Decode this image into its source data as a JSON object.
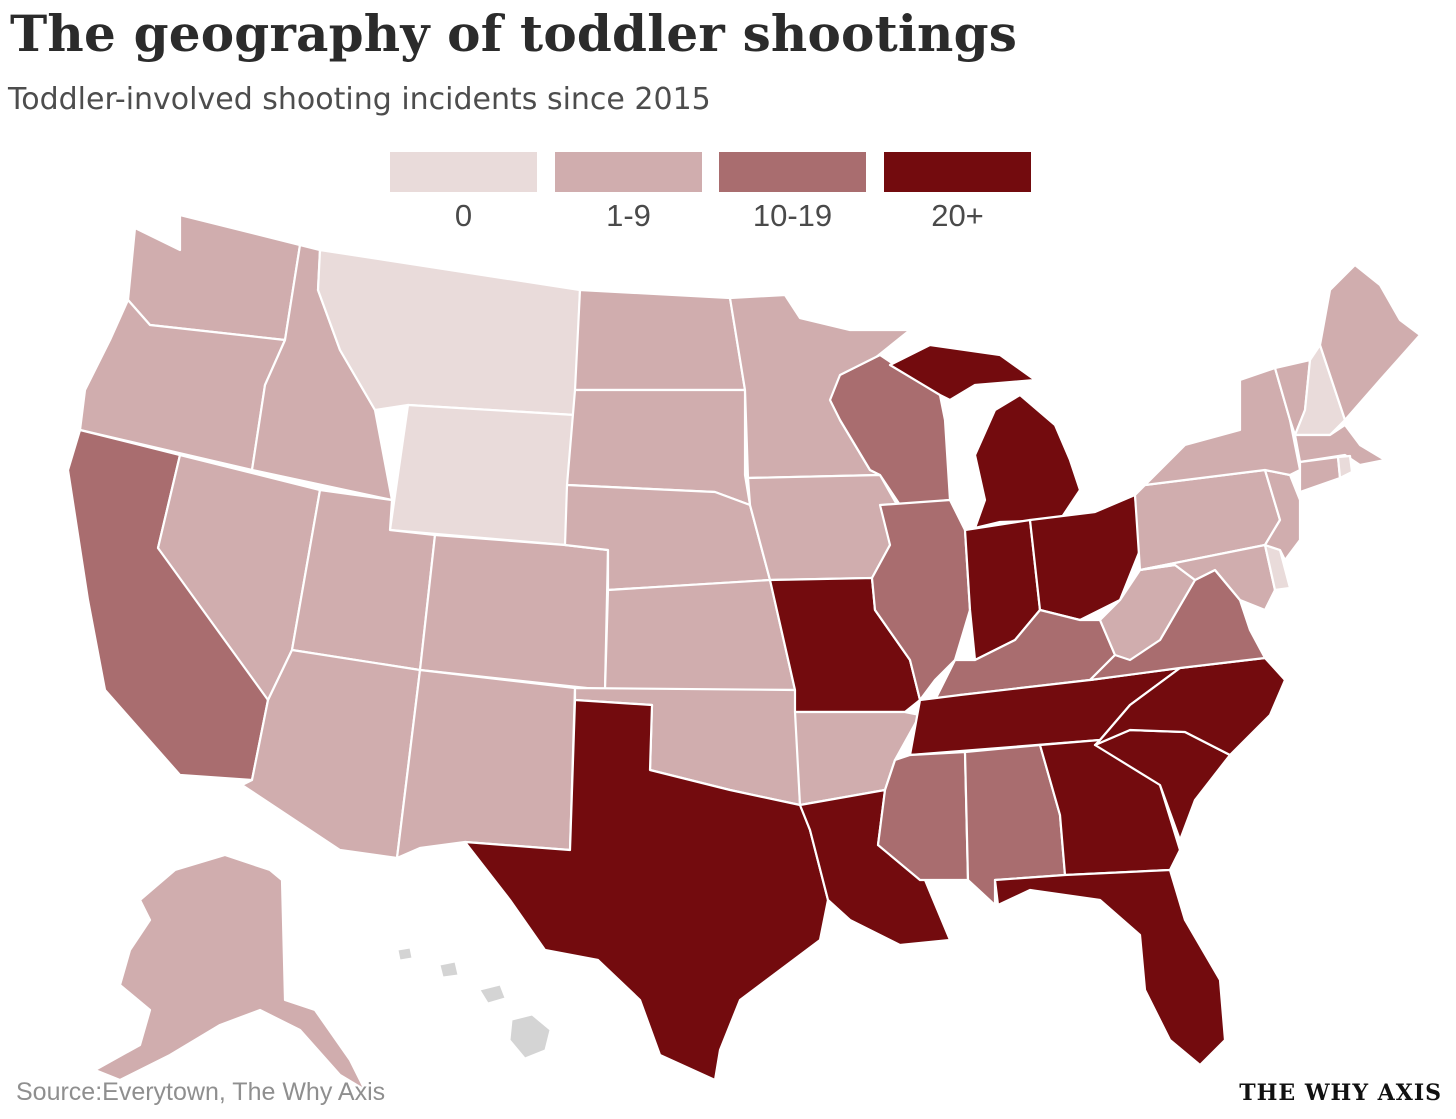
{
  "header": {
    "title": "The geography of toddler shootings",
    "subtitle": "Toddler-involved shooting incidents since 2015"
  },
  "legend": {
    "items": [
      {
        "label": "0",
        "color": "#e9dbda"
      },
      {
        "label": "1-9",
        "color": "#d0adae"
      },
      {
        "label": "10-19",
        "color": "#a96d6f"
      },
      {
        "label": "20+",
        "color": "#730b0e"
      }
    ]
  },
  "map": {
    "no_data_color": "#d4d4d4",
    "states": {
      "WA": "1-9",
      "OR": "1-9",
      "CA": "10-19",
      "NV": "1-9",
      "ID": "1-9",
      "MT": "0",
      "WY": "0",
      "UT": "1-9",
      "AZ": "1-9",
      "CO": "1-9",
      "NM": "1-9",
      "ND": "1-9",
      "SD": "1-9",
      "NE": "1-9",
      "KS": "1-9",
      "OK": "1-9",
      "TX": "20+",
      "MN": "1-9",
      "IA": "1-9",
      "MO": "20+",
      "AR": "1-9",
      "LA": "20+",
      "WI": "10-19",
      "IL": "10-19",
      "MI": "20+",
      "IN": "20+",
      "OH": "20+",
      "KY": "10-19",
      "TN": "20+",
      "MS": "10-19",
      "AL": "10-19",
      "GA": "20+",
      "FL": "20+",
      "SC": "20+",
      "NC": "20+",
      "VA": "10-19",
      "WV": "1-9",
      "PA": "1-9",
      "NY": "1-9",
      "NJ": "1-9",
      "DE": "0",
      "MD": "1-9",
      "CT": "1-9",
      "RI": "0",
      "MA": "1-9",
      "VT": "1-9",
      "NH": "0",
      "ME": "1-9",
      "AK": "1-9",
      "HI": "no data"
    }
  },
  "footer": {
    "source": "Source:Everytown, The Why Axis",
    "brand": "THE WHY AXIS"
  }
}
